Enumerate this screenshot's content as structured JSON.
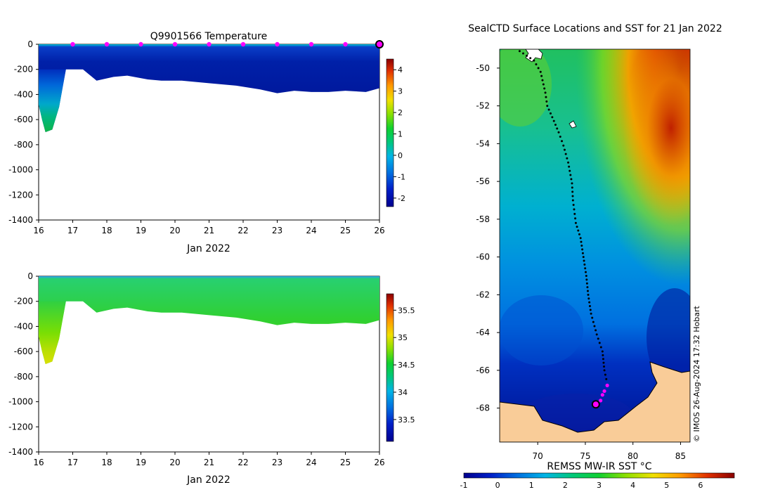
{
  "chart_data": [
    {
      "type": "heatmap",
      "title": "Q9901566  Temperature",
      "xlabel": "Jan 2022",
      "ylabel": "",
      "xlim": [
        16,
        26
      ],
      "ylim": [
        -1400,
        0
      ],
      "x_ticks": [
        "16",
        "17",
        "18",
        "19",
        "20",
        "21",
        "22",
        "23",
        "24",
        "25",
        "26"
      ],
      "y_ticks": [
        "0",
        "-200",
        "-400",
        "-600",
        "-800",
        "-1000",
        "-1200",
        "-1400"
      ],
      "colorbar": {
        "range": [
          -2.4,
          4.5
        ],
        "ticks": [
          "-2",
          "-1",
          "0",
          "1",
          "2",
          "3",
          "4"
        ]
      },
      "profile_depth_profile": [
        {
          "day": 16.0,
          "depth": -480
        },
        {
          "day": 16.1,
          "depth": -600
        },
        {
          "day": 16.2,
          "depth": -700
        },
        {
          "day": 16.4,
          "depth": -680
        },
        {
          "day": 16.6,
          "depth": -500
        },
        {
          "day": 16.8,
          "depth": -200
        },
        {
          "day": 17.3,
          "depth": -200
        },
        {
          "day": 17.7,
          "depth": -290
        },
        {
          "day": 18.2,
          "depth": -260
        },
        {
          "day": 18.6,
          "depth": -250
        },
        {
          "day": 19.2,
          "depth": -280
        },
        {
          "day": 19.6,
          "depth": -290
        },
        {
          "day": 20.2,
          "depth": -290
        },
        {
          "day": 21.0,
          "depth": -310
        },
        {
          "day": 21.8,
          "depth": -330
        },
        {
          "day": 22.5,
          "depth": -360
        },
        {
          "day": 23.0,
          "depth": -390
        },
        {
          "day": 23.5,
          "depth": -370
        },
        {
          "day": 24.0,
          "depth": -380
        },
        {
          "day": 24.5,
          "depth": -380
        },
        {
          "day": 25.0,
          "depth": -370
        },
        {
          "day": 25.6,
          "depth": -380
        },
        {
          "day": 26.0,
          "depth": -350
        }
      ],
      "surface_markers_days": [
        17,
        18,
        19,
        20,
        21,
        22,
        23,
        24,
        25
      ],
      "current_marker_day": 26
    },
    {
      "type": "heatmap",
      "title": "",
      "xlabel": "Jan 2022",
      "ylabel": "",
      "xlim": [
        16,
        26
      ],
      "ylim": [
        -1400,
        0
      ],
      "x_ticks": [
        "16",
        "17",
        "18",
        "19",
        "20",
        "21",
        "22",
        "23",
        "24",
        "25",
        "26"
      ],
      "y_ticks": [
        "0",
        "-200",
        "-400",
        "-600",
        "-800",
        "-1000",
        "-1200",
        "-1400"
      ],
      "colorbar": {
        "range": [
          33.1,
          35.8
        ],
        "ticks": [
          "33.5",
          "34",
          "34.5",
          "35",
          "35.5"
        ]
      }
    },
    {
      "type": "heatmap",
      "title": "SealCTD Surface Locations and SST for 21 Jan 2022",
      "xlabel": "REMSS MW-IR SST °C",
      "x_range": [
        66,
        86
      ],
      "y_range": [
        -69.8,
        -49
      ],
      "x_ticks": [
        "70",
        "75",
        "80",
        "85"
      ],
      "y_ticks": [
        "-50",
        "-52",
        "-54",
        "-56",
        "-58",
        "-60",
        "-62",
        "-64",
        "-66",
        "-68"
      ],
      "colorbar": {
        "range": [
          -1,
          7
        ],
        "ticks": [
          "-1",
          "0",
          "1",
          "2",
          "3",
          "4",
          "5",
          "6"
        ]
      },
      "track": [
        {
          "lon": 68.1,
          "lat": -49.1
        },
        {
          "lon": 69.6,
          "lat": -49.6
        },
        {
          "lon": 70.3,
          "lat": -50.2
        },
        {
          "lon": 70.8,
          "lat": -51.3
        },
        {
          "lon": 71.0,
          "lat": -52.0
        },
        {
          "lon": 71.7,
          "lat": -52.8
        },
        {
          "lon": 72.2,
          "lat": -53.4
        },
        {
          "lon": 72.7,
          "lat": -54.1
        },
        {
          "lon": 73.2,
          "lat": -55.0
        },
        {
          "lon": 73.6,
          "lat": -56.1
        },
        {
          "lon": 73.7,
          "lat": -57.0
        },
        {
          "lon": 74.0,
          "lat": -58.2
        },
        {
          "lon": 74.5,
          "lat": -59.0
        },
        {
          "lon": 74.8,
          "lat": -60.0
        },
        {
          "lon": 75.1,
          "lat": -61.0
        },
        {
          "lon": 75.3,
          "lat": -62.0
        },
        {
          "lon": 75.6,
          "lat": -63.0
        },
        {
          "lon": 76.2,
          "lat": -64.1
        },
        {
          "lon": 76.8,
          "lat": -65.0
        },
        {
          "lon": 77.0,
          "lat": -66.0
        },
        {
          "lon": 77.3,
          "lat": -66.7
        }
      ],
      "recent_positions": [
        {
          "lon": 77.3,
          "lat": -66.8
        },
        {
          "lon": 77.0,
          "lat": -67.1
        },
        {
          "lon": 76.8,
          "lat": -67.3
        },
        {
          "lon": 76.6,
          "lat": -67.6
        }
      ],
      "current_position": {
        "lon": 76.1,
        "lat": -67.8
      }
    }
  ],
  "credit": "© IMOS 26-Aug-2024 17:32 Hobart"
}
